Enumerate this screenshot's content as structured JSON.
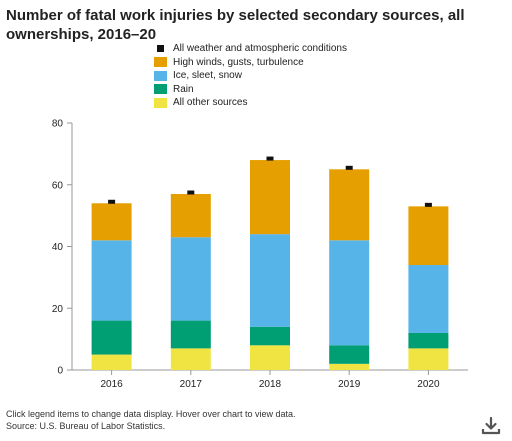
{
  "title": "Number of fatal work injuries by selected secondary sources, all ownerships, 2016–20",
  "footnote": "Click legend items to change data display. Hover over chart to view data.",
  "source": "Source: U.S. Bureau of Labor Statistics.",
  "download_icon": "download-icon",
  "colors": {
    "all_weather": "#111111",
    "high_winds": "#e69f00",
    "ice": "#56b4e9",
    "rain": "#009e73",
    "other": "#f0e442",
    "axis": "#999999"
  },
  "chart_data": {
    "type": "bar",
    "stacked": true,
    "title": "Number of fatal work injuries by selected secondary sources, all ownerships, 2016–20",
    "xlabel": "",
    "ylabel": "",
    "ylim": [
      0,
      80
    ],
    "yticks": [
      0,
      20,
      40,
      60,
      80
    ],
    "grid": false,
    "legend_position": "top",
    "categories": [
      "2016",
      "2017",
      "2018",
      "2019",
      "2020"
    ],
    "total_series": {
      "name": "All weather and atmospheric conditions",
      "values": [
        54,
        57,
        68,
        65,
        53
      ]
    },
    "series": [
      {
        "name": "All other sources",
        "key": "other",
        "values": [
          5,
          7,
          8,
          2,
          7
        ]
      },
      {
        "name": "Rain",
        "key": "rain",
        "values": [
          11,
          9,
          6,
          6,
          5
        ]
      },
      {
        "name": "Ice, sleet, snow",
        "key": "ice",
        "values": [
          26,
          27,
          30,
          34,
          22
        ]
      },
      {
        "name": "High winds, gusts, turbulence",
        "key": "high_winds",
        "values": [
          12,
          14,
          24,
          23,
          19
        ]
      }
    ]
  },
  "legend": [
    {
      "label": "All weather and atmospheric conditions",
      "key": "all_weather",
      "marker": "square"
    },
    {
      "label": "High winds, gusts, turbulence",
      "key": "high_winds",
      "marker": "box"
    },
    {
      "label": "Ice, sleet, snow",
      "key": "ice",
      "marker": "box"
    },
    {
      "label": "Rain",
      "key": "rain",
      "marker": "box"
    },
    {
      "label": "All other sources",
      "key": "other",
      "marker": "box"
    }
  ]
}
